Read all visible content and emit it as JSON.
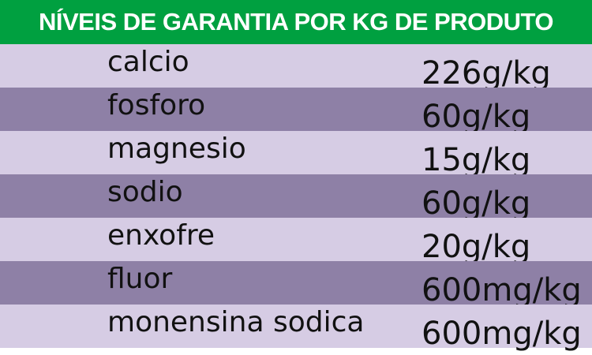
{
  "title": "NÍVEIS DE GARANTIA POR KG DE PRODUTO",
  "colors": {
    "header": "#00a040",
    "row_light": "#d6cce4",
    "row_dark": "#8e80a6"
  },
  "rows": [
    {
      "name": "calcio",
      "value": "226g/kg"
    },
    {
      "name": "fosforo",
      "value": "60g/kg"
    },
    {
      "name": "magnesio",
      "value": "15g/kg"
    },
    {
      "name": "sodio",
      "value": "60g/kg"
    },
    {
      "name": "enxofre",
      "value": "20g/kg"
    },
    {
      "name": "fluor",
      "value": "600mg/kg"
    },
    {
      "name": "monensina sodica",
      "value": "600mg/kg"
    }
  ]
}
